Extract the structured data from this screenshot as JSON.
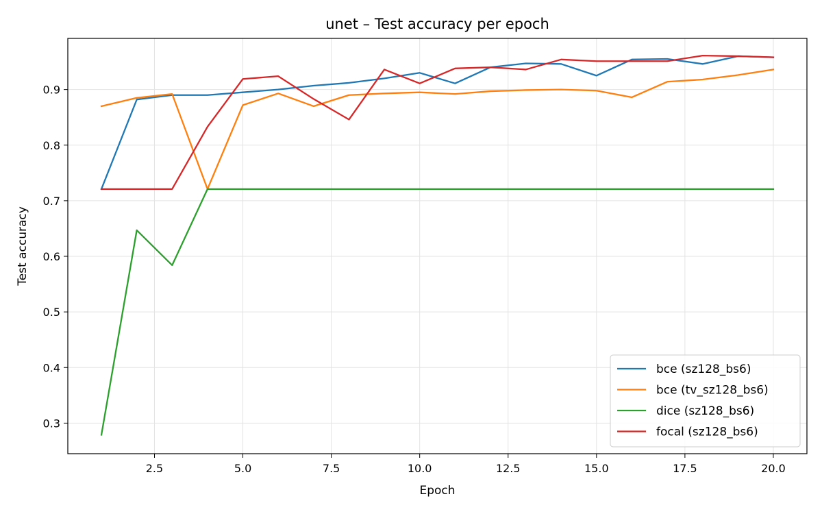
{
  "chart_data": {
    "type": "line",
    "title": "unet – Test accuracy per epoch",
    "xlabel": "Epoch",
    "ylabel": "Test accuracy",
    "xlim": [
      0.05,
      20.95
    ],
    "ylim": [
      0.245,
      0.992
    ],
    "xticks": [
      2.5,
      5.0,
      7.5,
      10.0,
      12.5,
      15.0,
      17.5,
      20.0
    ],
    "xtick_labels": [
      "2.5",
      "5.0",
      "7.5",
      "10.0",
      "12.5",
      "15.0",
      "17.5",
      "20.0"
    ],
    "yticks": [
      0.3,
      0.4,
      0.5,
      0.6,
      0.7,
      0.8,
      0.9
    ],
    "ytick_labels": [
      "0.3",
      "0.4",
      "0.5",
      "0.6",
      "0.7",
      "0.8",
      "0.9"
    ],
    "grid": true,
    "legend_position": "lower-right",
    "x": [
      1,
      2,
      3,
      4,
      5,
      6,
      7,
      8,
      9,
      10,
      11,
      12,
      13,
      14,
      15,
      16,
      17,
      18,
      19,
      20
    ],
    "series": [
      {
        "name": "bce (sz128_bs6)",
        "color": "#1f77b4",
        "values": [
          0.721,
          0.882,
          0.89,
          0.89,
          0.895,
          0.9,
          0.907,
          0.912,
          0.92,
          0.93,
          0.911,
          0.94,
          0.947,
          0.946,
          0.925,
          0.954,
          0.955,
          0.946,
          0.96,
          0.958
        ]
      },
      {
        "name": "bce (tv_sz128_bs6)",
        "color": "#ff7f0e",
        "values": [
          0.87,
          0.885,
          0.892,
          0.721,
          0.872,
          0.893,
          0.87,
          0.89,
          0.893,
          0.895,
          0.892,
          0.897,
          0.899,
          0.9,
          0.898,
          0.886,
          0.914,
          0.918,
          0.926,
          0.936
        ]
      },
      {
        "name": "dice (sz128_bs6)",
        "color": "#2ca02c",
        "values": [
          0.279,
          0.647,
          0.584,
          0.721,
          0.721,
          0.721,
          0.721,
          0.721,
          0.721,
          0.721,
          0.721,
          0.721,
          0.721,
          0.721,
          0.721,
          0.721,
          0.721,
          0.721,
          0.721,
          0.721
        ]
      },
      {
        "name": "focal (sz128_bs6)",
        "color": "#d62728",
        "values": [
          0.721,
          0.721,
          0.721,
          0.833,
          0.919,
          0.924,
          0.883,
          0.846,
          0.936,
          0.911,
          0.938,
          0.94,
          0.936,
          0.954,
          0.951,
          0.951,
          0.951,
          0.961,
          0.96,
          0.958
        ]
      }
    ]
  }
}
